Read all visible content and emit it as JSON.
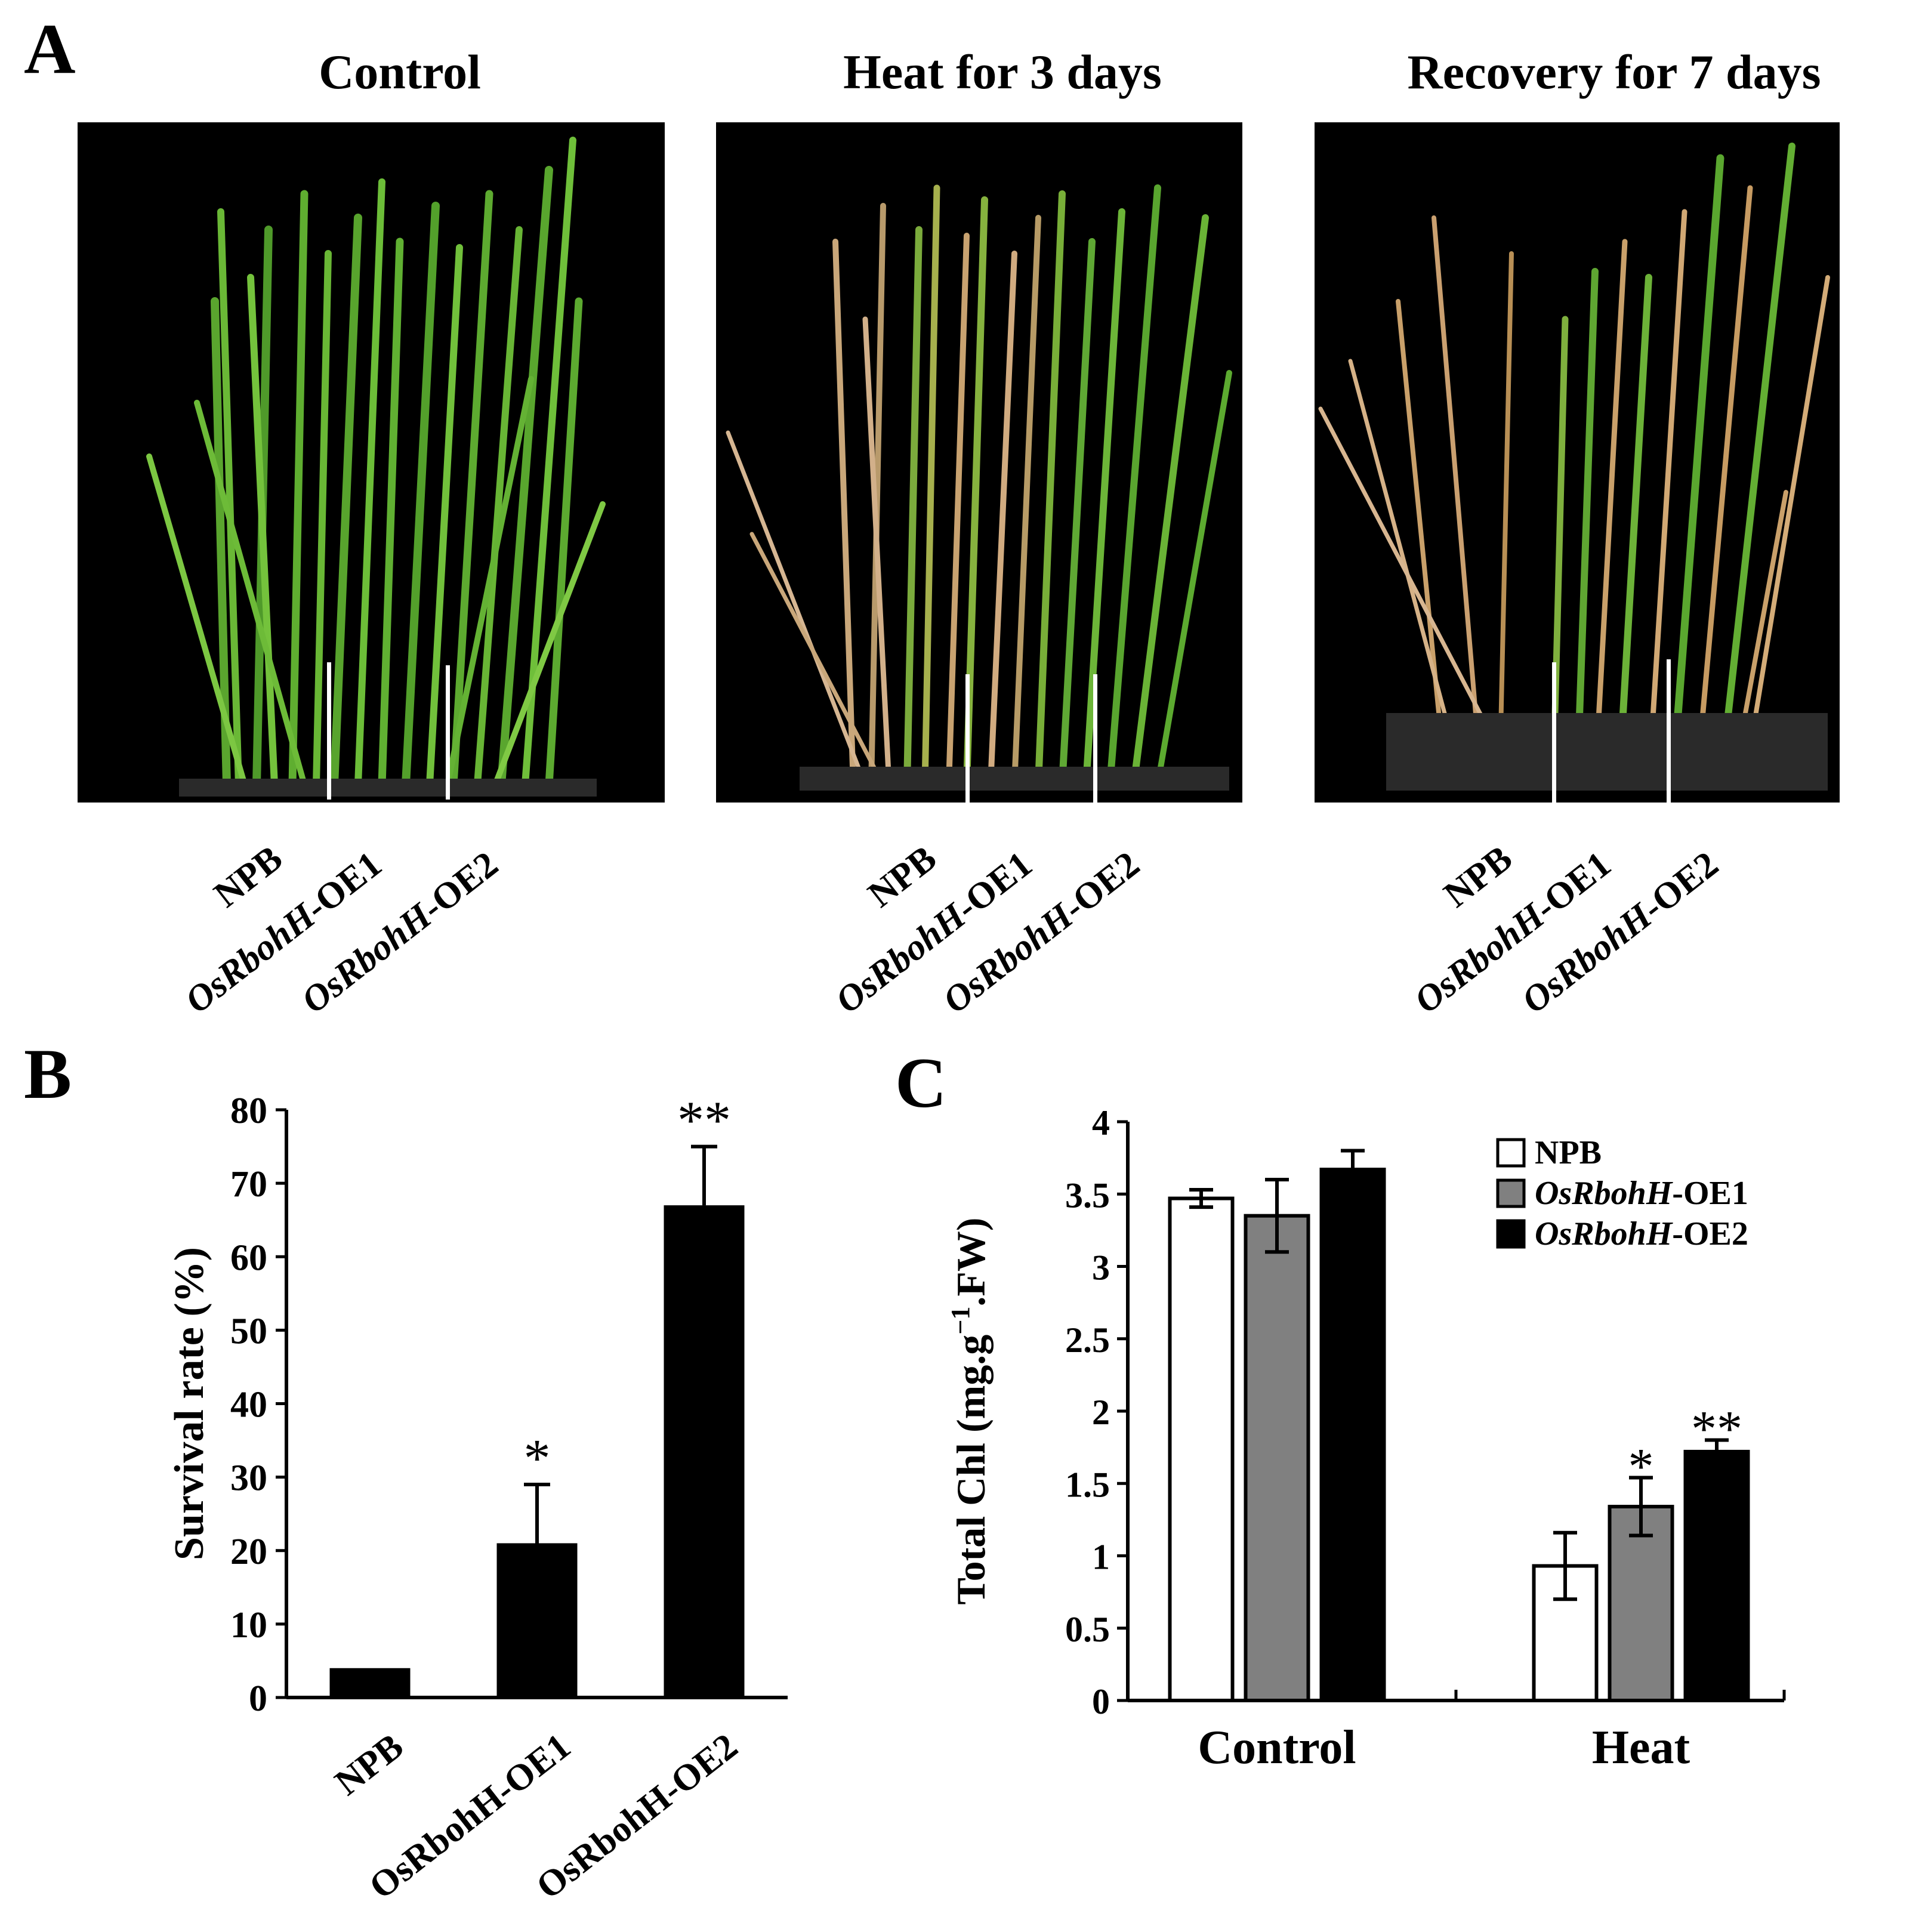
{
  "panel_a": {
    "letter": "A",
    "panels": [
      {
        "title": "Control",
        "labels": [
          "NPB",
          "OsRbohH-OE1",
          "OsRbohH-OE2"
        ]
      },
      {
        "title": "Heat for 3 days",
        "labels": [
          "NPB",
          "OsRbohH-OE1",
          "OsRbohH-OE2"
        ]
      },
      {
        "title": "Recovery for 7 days",
        "labels": [
          "NPB",
          "OsRbohH-OE1",
          "OsRbohH-OE2"
        ]
      }
    ],
    "gene_italic": "OsRbohH",
    "gene_suffix": "-OE1",
    "gene_suffix2": "-OE2",
    "npb": "NPB"
  },
  "panel_b": {
    "letter": "B"
  },
  "panel_c": {
    "letter": "C"
  },
  "chart_data": [
    {
      "type": "bar",
      "ylabel": "Survival rate (%)",
      "xlabel": "",
      "ylim": [
        0,
        80
      ],
      "yticks": [
        "0",
        "10",
        "20",
        "30",
        "40",
        "50",
        "60",
        "70",
        "80"
      ],
      "categories": [
        "NPB",
        "OsRbohH-OE1",
        "OsRbohH-OE2"
      ],
      "values": [
        4,
        21,
        67
      ],
      "errors": [
        0,
        8,
        8
      ],
      "significance": [
        "",
        "*",
        "**"
      ],
      "bar_color": "#000000"
    },
    {
      "type": "bar",
      "ylabel": "Total Chl (mg.g-1.FW)",
      "ylabel_parts": {
        "pre": "Total Chl (mg.g",
        "sup": "−1",
        "post": ".FW)"
      },
      "xlabel": "",
      "ylim": [
        0,
        4
      ],
      "yticks": [
        "0",
        "0.5",
        "1",
        "1.5",
        "2",
        "2.5",
        "3",
        "3.5",
        "4"
      ],
      "categories": [
        "Control",
        "Heat"
      ],
      "series": [
        {
          "name": "NPB",
          "values": [
            3.47,
            0.93
          ],
          "errors": [
            0.06,
            0.23
          ],
          "color": "#ffffff"
        },
        {
          "name": "OsRbohH-OE1",
          "values": [
            3.35,
            1.34
          ],
          "errors": [
            0.25,
            0.2
          ],
          "color": "#808080"
        },
        {
          "name": "OsRbohH-OE2",
          "values": [
            3.67,
            1.72
          ],
          "errors": [
            0.13,
            0.08
          ],
          "color": "#000000"
        }
      ],
      "significance": [
        [
          "",
          "",
          ""
        ],
        [
          "",
          "*",
          "**"
        ]
      ],
      "legend": {
        "position": "top-right",
        "italic_part": "OsRbohH",
        "suffixes": [
          "",
          "-OE1",
          "-OE2"
        ]
      }
    }
  ]
}
